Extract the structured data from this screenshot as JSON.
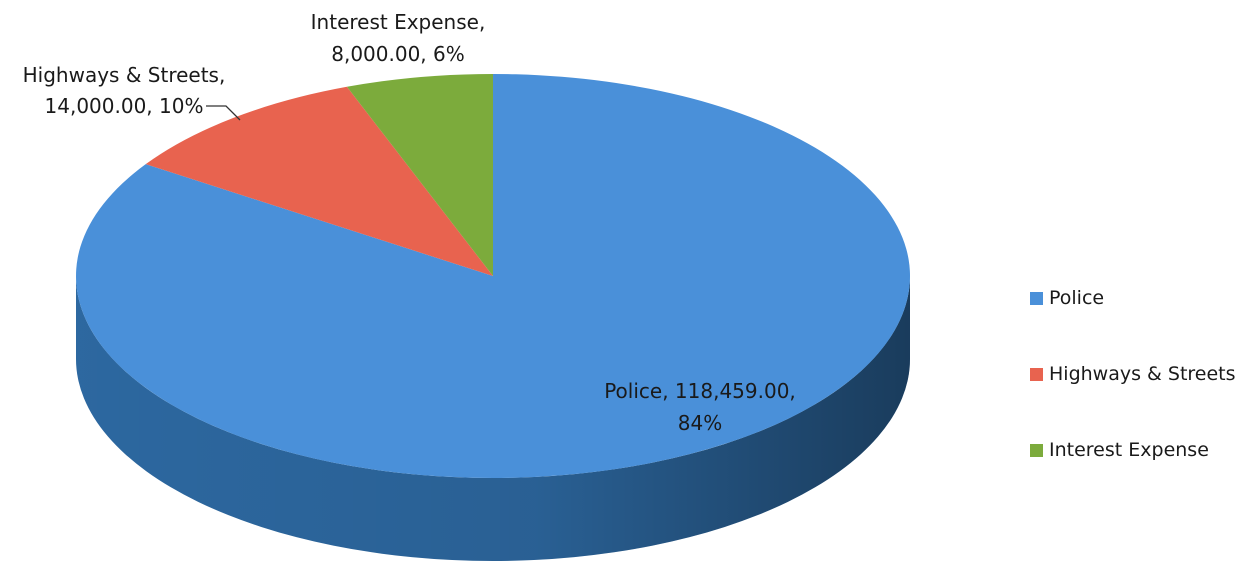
{
  "chart_data": {
    "type": "pie",
    "style": "3d",
    "title": "",
    "legend_position": "right",
    "slices": [
      {
        "label": "Police",
        "value": 118459.0,
        "value_text": "118,459.00",
        "percent": "84%",
        "color": "#4a90d9",
        "side_color": "#2f6da8"
      },
      {
        "label": "Highways & Streets",
        "value": 14000.0,
        "value_text": "14,000.00",
        "percent": "10%",
        "color": "#e8634f",
        "side_color": "#b84a3a"
      },
      {
        "label": "Interest Expense",
        "value": 8000.0,
        "value_text": "8,000.00",
        "percent": "6%",
        "color": "#7cab3c",
        "side_color": "#5a8028"
      }
    ]
  }
}
